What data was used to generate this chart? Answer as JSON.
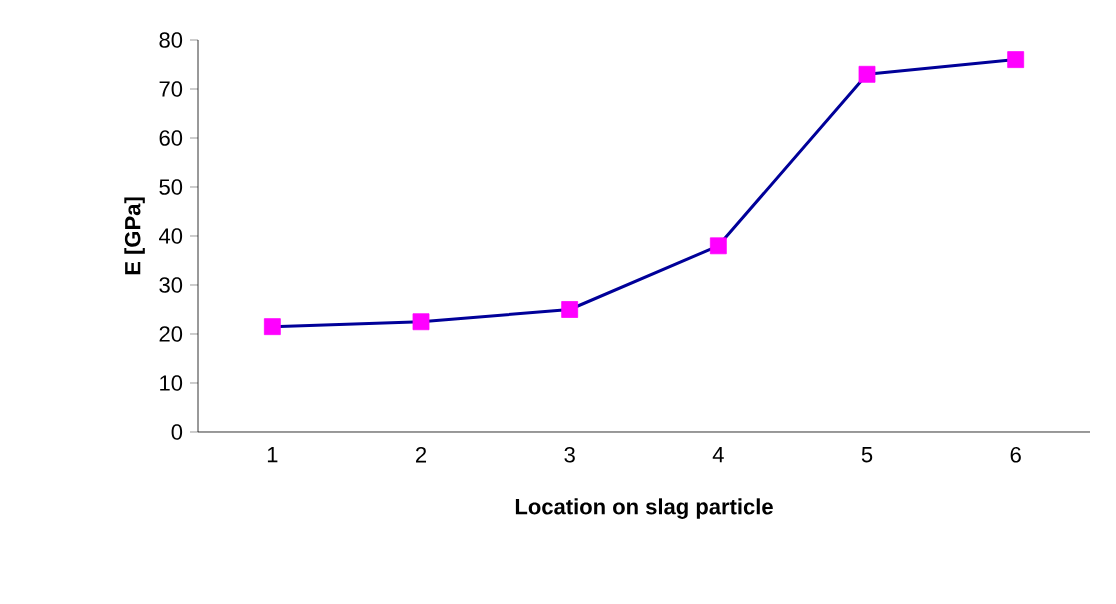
{
  "chart_data": {
    "type": "line",
    "xlabel": "Location on slag particle",
    "ylabel": "E [GPa]",
    "categories": [
      "1",
      "2",
      "3",
      "4",
      "5",
      "6"
    ],
    "series": [
      {
        "color": "#000099",
        "colors": [
          "#ff00ff",
          "#ff00ff",
          "#ff00ff",
          "#ff00ff",
          "#ff00ff",
          "#ff00ff"
        ],
        "values": [
          21.5,
          22.5,
          25,
          38,
          73,
          76
        ]
      }
    ],
    "marker": "square",
    "ylim": [
      0,
      80
    ],
    "yticks": [
      0,
      10,
      20,
      30,
      40,
      50,
      60,
      70,
      80
    ]
  }
}
